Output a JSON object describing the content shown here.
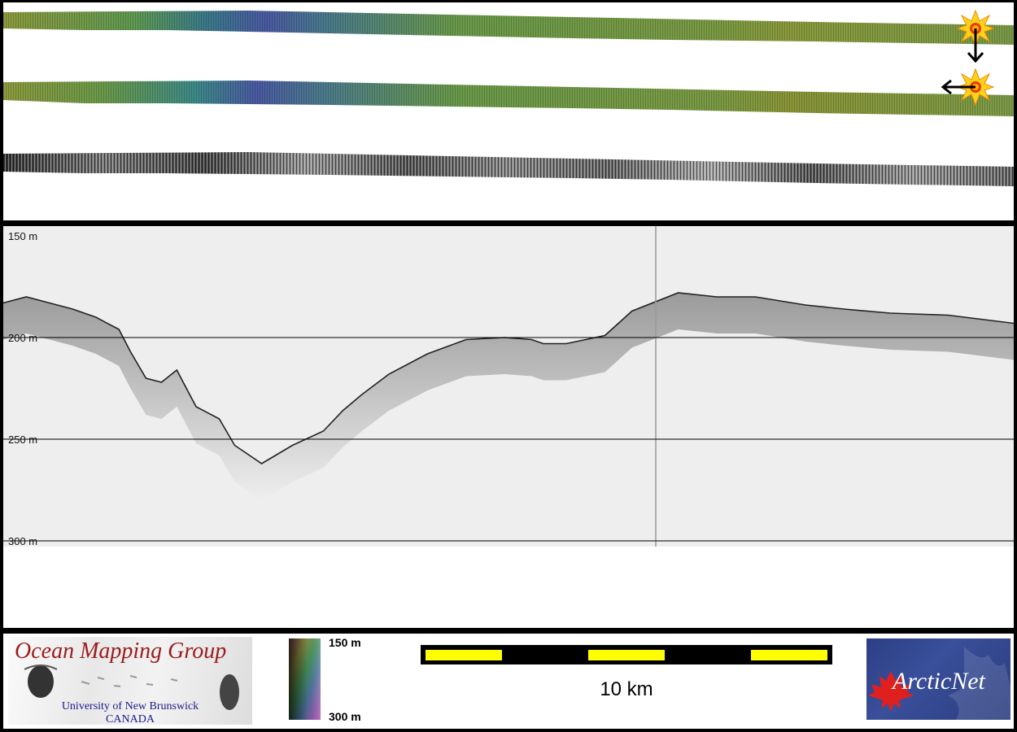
{
  "depth_axis": {
    "unit": "m",
    "ticks": [
      "150 m",
      "200 m",
      "250 m",
      "300 m"
    ]
  },
  "colorbar": {
    "top_label": "150 m",
    "bottom_label": "300 m"
  },
  "scale_bar": {
    "label": "10 km"
  },
  "logos": {
    "ocean_mapping_group": {
      "title": "Ocean Mapping Group",
      "line1": "University of New Brunswick",
      "line2": "CANADA"
    },
    "arcticnet": {
      "name": "ArcticNet"
    }
  },
  "colors": {
    "swath_colored": [
      "#8a9a3c",
      "#6f9a4a",
      "#3a7a8c",
      "#4a5aa0",
      "#7a9a4a"
    ],
    "scale_bar_fill": "#ffff00",
    "grid_line": "#000000",
    "profile_background": "#eeeeee"
  },
  "icons": [
    "start-marker-icon",
    "arrow-down-icon",
    "arrow-left-icon"
  ],
  "profile_data": {
    "x_km": [
      0,
      0.6,
      1.2,
      1.8,
      2.4,
      3.0,
      3.3,
      3.7,
      4.1,
      4.5,
      5.0,
      5.6,
      6.0,
      6.7,
      7.5,
      8.3,
      8.8,
      9.3,
      10,
      11,
      12,
      13,
      13.7,
      14.0,
      14.6,
      15.6,
      16.3,
      17.5,
      18.5,
      19.5,
      20.8,
      21.8,
      23.0,
      24.5,
      26.2
    ],
    "depth_m": [
      183,
      180,
      183,
      186,
      190,
      196,
      207,
      220,
      222,
      216,
      234,
      240,
      253,
      262,
      253,
      246,
      236,
      228,
      218,
      208,
      201,
      200,
      201,
      203,
      203,
      199,
      187,
      178,
      180,
      180,
      184,
      186,
      188,
      189,
      193
    ]
  }
}
